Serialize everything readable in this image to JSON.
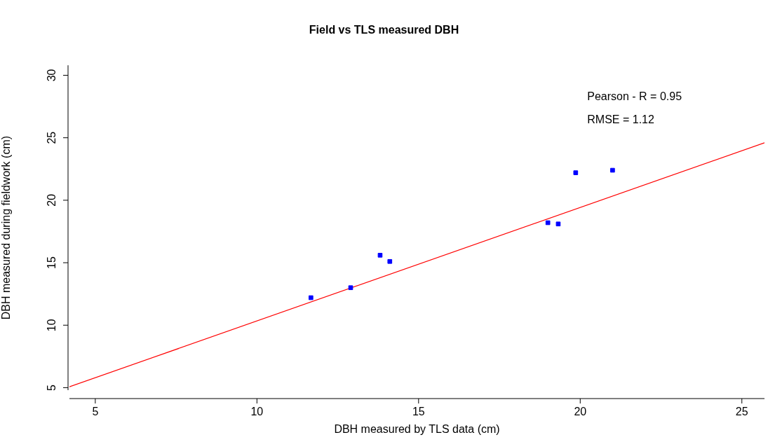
{
  "chart_data": {
    "type": "scatter",
    "title": "Field vs TLS measured DBH",
    "xlabel": "DBH measured by TLS data (cm)",
    "ylabel": "DBH measured during fieldwork (cm)",
    "xlim": [
      4.2,
      25.7
    ],
    "ylim": [
      4.8,
      30.8
    ],
    "xticks": [
      5,
      10,
      15,
      20,
      25
    ],
    "yticks": [
      5,
      10,
      15,
      20,
      25,
      30
    ],
    "marker": "square",
    "annotations": [
      "Pearson - R = 0.95",
      "RMSE = 1.12"
    ],
    "series": [
      {
        "color": "#0000ff",
        "x": [
          11.67,
          12.9,
          13.81,
          14.11,
          19.0,
          19.32,
          19.86,
          21.0
        ],
        "values": [
          12.2,
          13.0,
          15.6,
          15.1,
          18.2,
          18.1,
          22.2,
          22.4
        ]
      },
      {
        "type": "line",
        "marker": "none",
        "color": "#ff0000",
        "x": [
          4.2,
          25.7
        ],
        "values": [
          5.07,
          24.6
        ]
      }
    ]
  }
}
